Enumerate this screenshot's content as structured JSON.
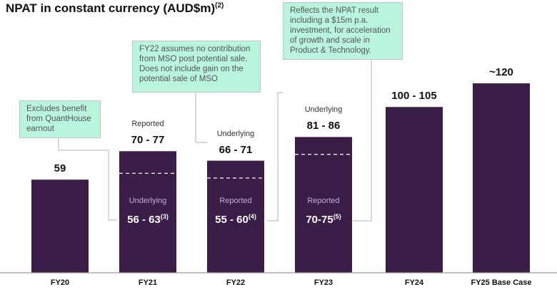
{
  "chart_data": {
    "type": "bar",
    "title": "NPAT in constant currency (AUD$m)",
    "title_footnote": "(2)",
    "categories": [
      "FY20",
      "FY21",
      "FY22",
      "FY23",
      "FY24",
      "FY25 Base Case"
    ],
    "values": [
      59,
      77,
      71,
      86,
      105,
      120
    ],
    "value_labels": [
      "59",
      "70 - 77",
      "66 - 71",
      "81 - 86",
      "100 - 105",
      "~120"
    ],
    "top_sublabels": [
      "",
      "Reported",
      "Underlying",
      "Underlying",
      "",
      ""
    ],
    "split_values": [
      null,
      63,
      60,
      75,
      null,
      null
    ],
    "inner_sublabels": [
      "",
      "Underlying",
      "Reported",
      "Reported",
      "",
      ""
    ],
    "inner_values": [
      "",
      "56 - 63",
      "55 - 60",
      "70-75",
      "",
      ""
    ],
    "inner_footnotes": [
      "",
      "(3)",
      "(4)",
      "(5)",
      "",
      ""
    ],
    "ylim": [
      0,
      130
    ],
    "bar_color": "#3b1e47",
    "annotations": [
      "Excludes benefit from QuantHouse earnout",
      "FY22 assumes no contribution from MSO post potential sale. Does not include gain on the potential sale of MSO",
      "Reflects the NPAT result including a $15m p.a. investment, for acceleration of growth and scale in Product & Technology."
    ]
  }
}
